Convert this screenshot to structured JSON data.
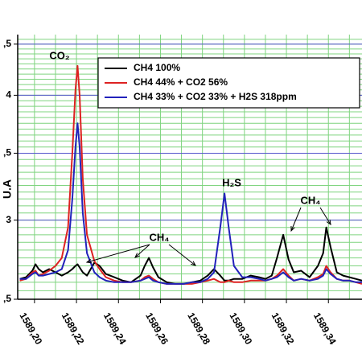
{
  "chart_data": {
    "type": "line",
    "y_label": "U.A",
    "yscale": "log",
    "xlim": [
      1589.192,
      1589.356
    ],
    "ylim": [
      2.5,
      4.6
    ],
    "xticks": [
      {
        "value": 1589.2,
        "label": "1589,20"
      },
      {
        "value": 1589.22,
        "label": "1589,22"
      },
      {
        "value": 1589.24,
        "label": "1589,24"
      },
      {
        "value": 1589.26,
        "label": "1589,26"
      },
      {
        "value": 1589.28,
        "label": "1589,28"
      },
      {
        "value": 1589.3,
        "label": "1589,30"
      },
      {
        "value": 1589.32,
        "label": "1589,32"
      },
      {
        "value": 1589.34,
        "label": "1589,34"
      }
    ],
    "yticks": [
      {
        "value": 2.5,
        "label": ",5"
      },
      3,
      {
        "value": 3.5,
        "label": ",5"
      },
      4,
      {
        "value": 4.5,
        "label": ",5"
      }
    ],
    "grid": true,
    "minor_xstep": 0.01,
    "minor_ystep": 0.05,
    "grid_color": "#7fd47f",
    "major_grid_color": "#5555cc",
    "legend": "upper right",
    "annotations": [
      "CO₂",
      "CH₄",
      "H₂S",
      "CH₄"
    ],
    "x": [
      1589.193,
      1589.196,
      1589.199,
      1589.2005,
      1589.202,
      1589.204,
      1589.207,
      1589.21,
      1589.213,
      1589.216,
      1589.218,
      1589.2195,
      1589.2205,
      1589.2215,
      1589.223,
      1589.225,
      1589.2285,
      1589.231,
      1589.234,
      1589.238,
      1589.242,
      1589.246,
      1589.2505,
      1589.2525,
      1589.2545,
      1589.2565,
      1589.259,
      1589.263,
      1589.267,
      1589.271,
      1589.275,
      1589.279,
      1589.2825,
      1589.2855,
      1589.2885,
      1589.2905,
      1589.2925,
      1589.295,
      1589.299,
      1589.303,
      1589.307,
      1589.31,
      1589.313,
      1589.3155,
      1589.3185,
      1589.321,
      1589.3235,
      1589.327,
      1589.331,
      1589.335,
      1589.3375,
      1589.339,
      1589.341,
      1589.344,
      1589.347,
      1589.35,
      1589.353,
      1589.356
    ],
    "series": [
      {
        "name": "CH4 100%",
        "color": "#000000",
        "values": [
          2.62,
          2.63,
          2.67,
          2.71,
          2.68,
          2.66,
          2.68,
          2.66,
          2.64,
          2.66,
          2.68,
          2.7,
          2.71,
          2.69,
          2.66,
          2.64,
          2.72,
          2.7,
          2.65,
          2.63,
          2.61,
          2.6,
          2.64,
          2.7,
          2.75,
          2.69,
          2.63,
          2.6,
          2.59,
          2.59,
          2.6,
          2.61,
          2.64,
          2.68,
          2.64,
          2.61,
          2.61,
          2.62,
          2.62,
          2.64,
          2.63,
          2.62,
          2.64,
          2.75,
          2.9,
          2.74,
          2.66,
          2.67,
          2.63,
          2.7,
          2.78,
          2.95,
          2.82,
          2.66,
          2.64,
          2.63,
          2.62,
          2.61
        ]
      },
      {
        "name": "CH4 44% + CO2 56%",
        "color": "#dd2222",
        "values": [
          2.61,
          2.62,
          2.66,
          2.67,
          2.64,
          2.65,
          2.67,
          2.7,
          2.75,
          2.95,
          3.5,
          4.05,
          4.28,
          4.0,
          3.3,
          2.9,
          2.73,
          2.68,
          2.63,
          2.61,
          2.6,
          2.6,
          2.61,
          2.63,
          2.64,
          2.62,
          2.6,
          2.59,
          2.59,
          2.59,
          2.59,
          2.6,
          2.61,
          2.62,
          2.6,
          2.6,
          2.61,
          2.6,
          2.6,
          2.61,
          2.61,
          2.61,
          2.62,
          2.64,
          2.68,
          2.64,
          2.61,
          2.62,
          2.61,
          2.63,
          2.65,
          2.7,
          2.66,
          2.62,
          2.61,
          2.61,
          2.6,
          2.59
        ]
      },
      {
        "name": "CH4 33% + CO2 33% + H2S 318ppm",
        "color": "#2222bb",
        "values": [
          2.62,
          2.62,
          2.65,
          2.66,
          2.64,
          2.64,
          2.65,
          2.66,
          2.68,
          2.8,
          3.15,
          3.55,
          3.75,
          3.55,
          3.05,
          2.78,
          2.66,
          2.63,
          2.61,
          2.6,
          2.6,
          2.6,
          2.61,
          2.62,
          2.63,
          2.61,
          2.6,
          2.59,
          2.59,
          2.59,
          2.6,
          2.6,
          2.62,
          2.66,
          2.95,
          3.19,
          2.95,
          2.7,
          2.63,
          2.63,
          2.62,
          2.61,
          2.62,
          2.63,
          2.66,
          2.63,
          2.61,
          2.62,
          2.61,
          2.62,
          2.64,
          2.68,
          2.65,
          2.62,
          2.61,
          2.61,
          2.6,
          2.6
        ]
      }
    ]
  }
}
